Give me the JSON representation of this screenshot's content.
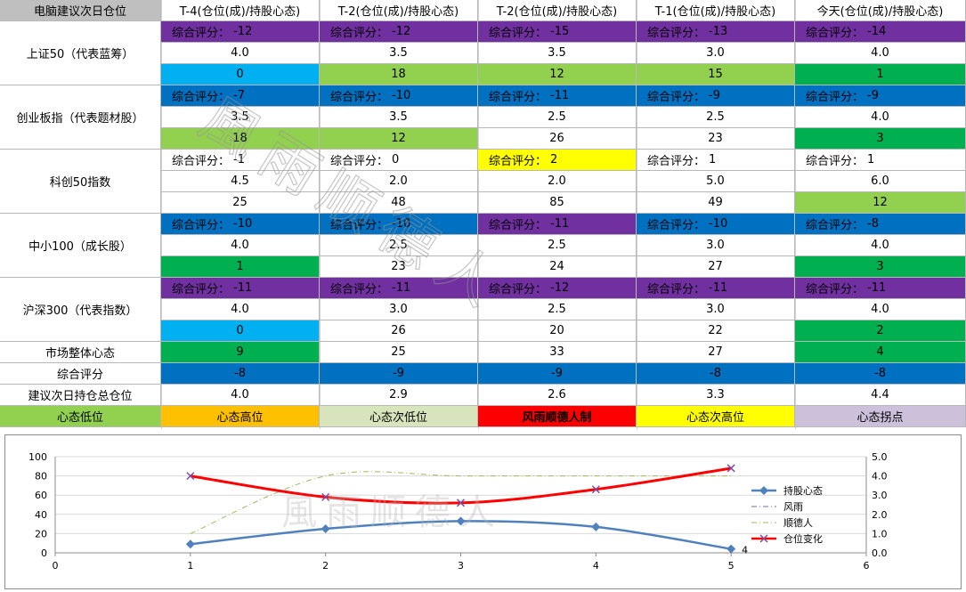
{
  "colors": {
    "purple": "#7030a0",
    "blue": "#0070c0",
    "cyan": "#00b0f0",
    "lightgreen": "#92d050",
    "green": "#00b050",
    "yellow": "#ffff00",
    "orange": "#ffc000",
    "palegreen": "#d8e4bc",
    "red": "#ff0000",
    "lavender": "#ccc0da",
    "header_gray": "#bfbfbf"
  },
  "table": {
    "corner": "电脑建议次日仓位",
    "columns": [
      "T-4(仓位(成)/持股心态)",
      "T-2(仓位(成)/持股心态)",
      "T-2(仓位(成)/持股心态)",
      "T-1(仓位(成)/持股心态)",
      "今天(仓位(成)/持股心态)"
    ],
    "score_prefix": "综合评分：",
    "indices": [
      {
        "name": "上证50（代表蓝筹）",
        "scores": [
          "-12",
          "-12",
          "-15",
          "-13",
          "-14"
        ],
        "score_colors": [
          "purple",
          "purple",
          "purple",
          "purple",
          "purple"
        ],
        "positions": [
          "4.0",
          "3.5",
          "3.5",
          "3.0",
          "4.0"
        ],
        "moods": [
          "0",
          "18",
          "12",
          "15",
          "1"
        ],
        "mood_colors": [
          "cyan",
          "lightgreen",
          "lightgreen",
          "lightgreen",
          "green"
        ]
      },
      {
        "name": "创业板指（代表题材股）",
        "scores": [
          "-7",
          "-10",
          "-11",
          "-9",
          "-9"
        ],
        "score_colors": [
          "blue",
          "blue",
          "blue",
          "blue",
          "blue"
        ],
        "positions": [
          "3.5",
          "3.5",
          "2.5",
          "2.5",
          "4.0"
        ],
        "moods": [
          "18",
          "12",
          "26",
          "23",
          "3"
        ],
        "mood_colors": [
          "lightgreen",
          "lightgreen",
          "",
          "",
          "green"
        ]
      },
      {
        "name": "科创50指数",
        "scores": [
          "-1",
          "0",
          "2",
          "1",
          "1"
        ],
        "score_colors": [
          "",
          "",
          "yellow",
          "",
          ""
        ],
        "positions": [
          "4.5",
          "2.0",
          "2.0",
          "5.0",
          "6.0"
        ],
        "moods": [
          "25",
          "48",
          "85",
          "49",
          "12"
        ],
        "mood_colors": [
          "",
          "",
          "",
          "",
          "lightgreen"
        ]
      },
      {
        "name": "中小100（成长股）",
        "scores": [
          "-10",
          "-10",
          "-11",
          "-10",
          "-8"
        ],
        "score_colors": [
          "blue",
          "blue",
          "purple",
          "blue",
          "blue"
        ],
        "positions": [
          "4.0",
          "2.5",
          "2.5",
          "3.0",
          "4.0"
        ],
        "moods": [
          "1",
          "23",
          "24",
          "27",
          "3"
        ],
        "mood_colors": [
          "green",
          "",
          "",
          "",
          "green"
        ]
      },
      {
        "name": "沪深300（代表指数）",
        "scores": [
          "-11",
          "-11",
          "-12",
          "-11",
          "-11"
        ],
        "score_colors": [
          "purple",
          "purple",
          "purple",
          "purple",
          "purple"
        ],
        "positions": [
          "4.0",
          "3.0",
          "2.5",
          "3.0",
          "4.0"
        ],
        "moods": [
          "0",
          "26",
          "20",
          "22",
          "2"
        ],
        "mood_colors": [
          "cyan",
          "",
          "",
          "",
          "green"
        ]
      }
    ],
    "market": {
      "label": "市场整体心态",
      "values": [
        "9",
        "25",
        "33",
        "27",
        "4"
      ],
      "colors": [
        "green",
        "",
        "",
        "",
        "green"
      ]
    },
    "overall": {
      "label": "综合评分",
      "values": [
        "-8",
        "-9",
        "-9",
        "-8",
        "-8"
      ],
      "colors": [
        "blue",
        "blue",
        "blue",
        "blue",
        "blue"
      ]
    },
    "suggest": {
      "label": "建议次日持仓总仓位",
      "values": [
        "4.0",
        "2.9",
        "2.6",
        "3.3",
        "4.4"
      ]
    },
    "legend": [
      {
        "label": "心态低位",
        "color": "lightgreen"
      },
      {
        "label": "心态高位",
        "color": "orange"
      },
      {
        "label": "心态次低位",
        "color": "palegreen"
      },
      {
        "label": "风雨顺德人制",
        "color": "red"
      },
      {
        "label": "心态次高位",
        "color": "yellow"
      },
      {
        "label": "心态拐点",
        "color": "lavender"
      }
    ]
  },
  "watermark_text": "風雨顺德人",
  "chart_data": {
    "type": "line",
    "x_ticks": [
      "0",
      "1",
      "2",
      "3",
      "4",
      "5",
      "6"
    ],
    "xlim": [
      0,
      6
    ],
    "ylim": [
      0,
      100
    ],
    "y_ticks": [
      "0",
      "20",
      "40",
      "60",
      "80",
      "100"
    ],
    "y2lim": [
      0,
      5
    ],
    "y2_ticks": [
      "0.0",
      "1.0",
      "2.0",
      "3.0",
      "4.0",
      "5.0"
    ],
    "grid": true,
    "legend_position": "right",
    "series": [
      {
        "name": "持股心态",
        "axis": "left",
        "color": "#4f81bd",
        "marker": "diamond",
        "x": [
          1,
          2,
          3,
          4,
          5
        ],
        "values": [
          9,
          25,
          33,
          27,
          4
        ]
      },
      {
        "name": "风雨",
        "axis": "left",
        "color": "#8064a2",
        "style": "dashdot",
        "x": [],
        "values": []
      },
      {
        "name": "顺德人",
        "axis": "right",
        "color": "#9bbb59",
        "style": "dashdot",
        "x": [
          1,
          2,
          3,
          4,
          5
        ],
        "values": [
          1.0,
          4.0,
          4.0,
          4.0,
          4.0
        ]
      },
      {
        "name": "仓位变化",
        "axis": "right",
        "color": "#ff0000",
        "marker": "x",
        "x": [
          1,
          2,
          3,
          4,
          5
        ],
        "values": [
          4.0,
          2.9,
          2.6,
          3.3,
          4.4
        ]
      }
    ],
    "annotations": [
      {
        "text": "4",
        "series": "持股心态",
        "x": 5
      }
    ]
  }
}
